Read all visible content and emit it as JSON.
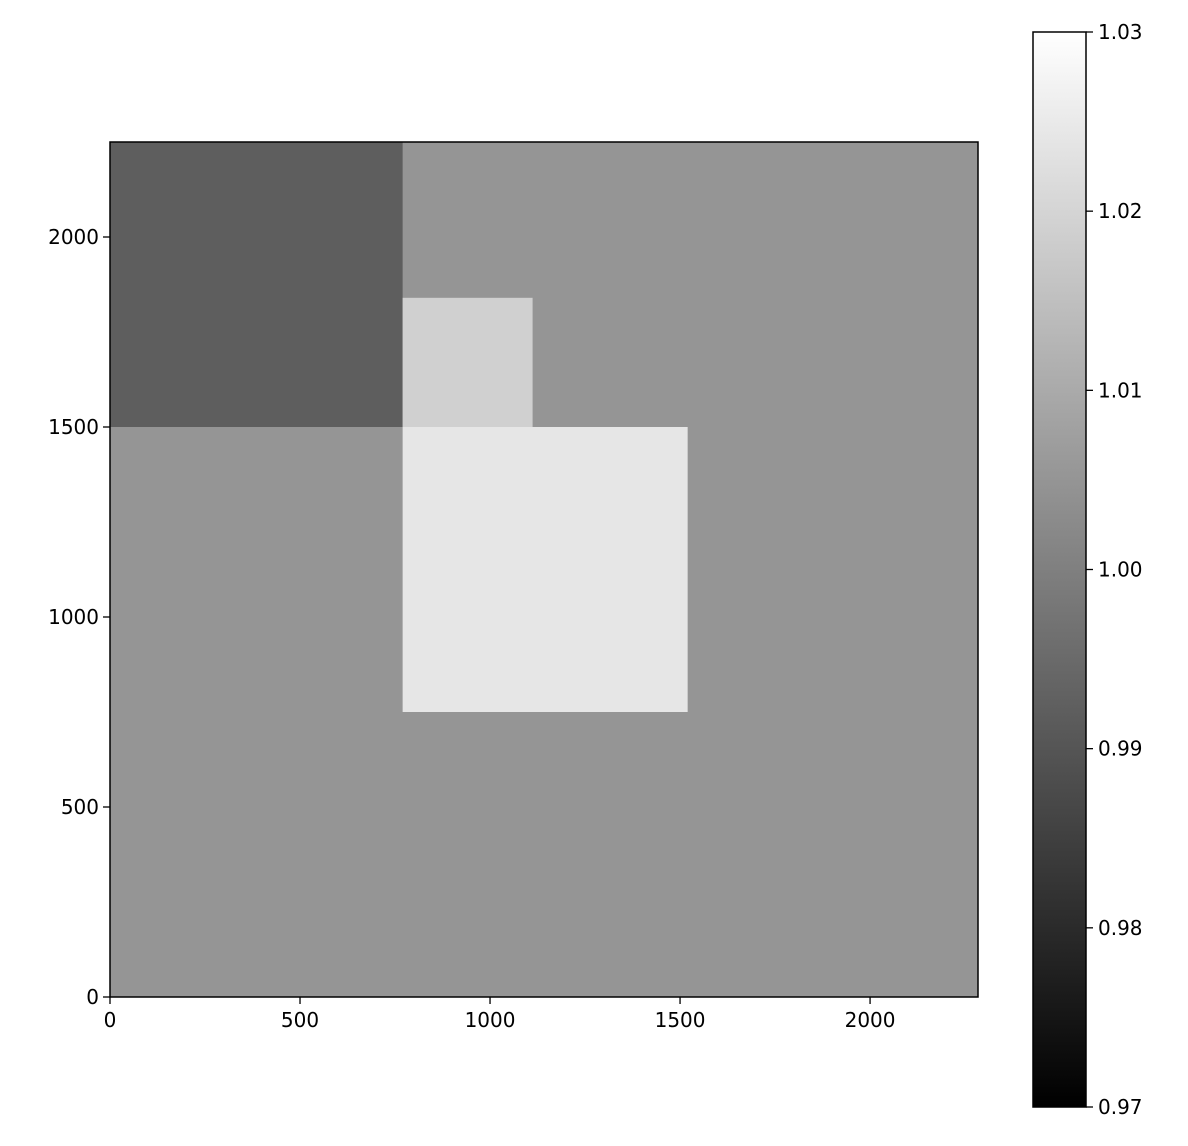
{
  "chart_data": {
    "type": "heatmap",
    "title": "",
    "xlabel": "",
    "ylabel": "",
    "xlim": [
      0,
      2284
    ],
    "ylim": [
      0,
      2250
    ],
    "x_ticks": [
      "0",
      "500",
      "1000",
      "1500",
      "2000"
    ],
    "y_ticks": [
      "0",
      "500",
      "1000",
      "1500",
      "2000"
    ],
    "x_tick_values": [
      0,
      500,
      1000,
      1500,
      2000
    ],
    "y_tick_values": [
      0,
      500,
      1000,
      1500,
      2000
    ],
    "colormap": "gray",
    "background_value": 1.005,
    "regions": [
      {
        "x": [
          0,
          770
        ],
        "y": [
          1500,
          2250
        ],
        "value": 0.992
      },
      {
        "x": [
          770,
          1112
        ],
        "y": [
          1500,
          1840
        ],
        "value": 1.019
      },
      {
        "x": [
          770,
          1520
        ],
        "y": [
          750,
          1500
        ],
        "value": 1.024
      }
    ],
    "colorbar": {
      "range": [
        0.97,
        1.03
      ],
      "ticks": [
        "0.97",
        "0.98",
        "0.99",
        "1.00",
        "1.01",
        "1.02",
        "1.03"
      ],
      "tick_values": [
        0.97,
        0.98,
        0.99,
        1.0,
        1.01,
        1.02,
        1.03
      ]
    },
    "grid": false
  }
}
